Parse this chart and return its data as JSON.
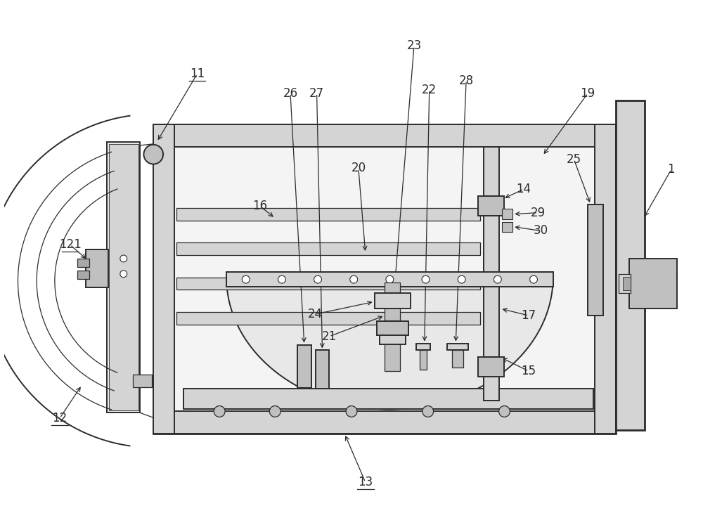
{
  "bg_color": "#ffffff",
  "lc": "#2c2c2c",
  "figsize": [
    10,
    7.3
  ],
  "dpi": 100,
  "gray1": "#e8e8e8",
  "gray2": "#d4d4d4",
  "gray3": "#c0c0c0",
  "gray4": "#a8a8a8",
  "gray5": "#f4f4f4"
}
